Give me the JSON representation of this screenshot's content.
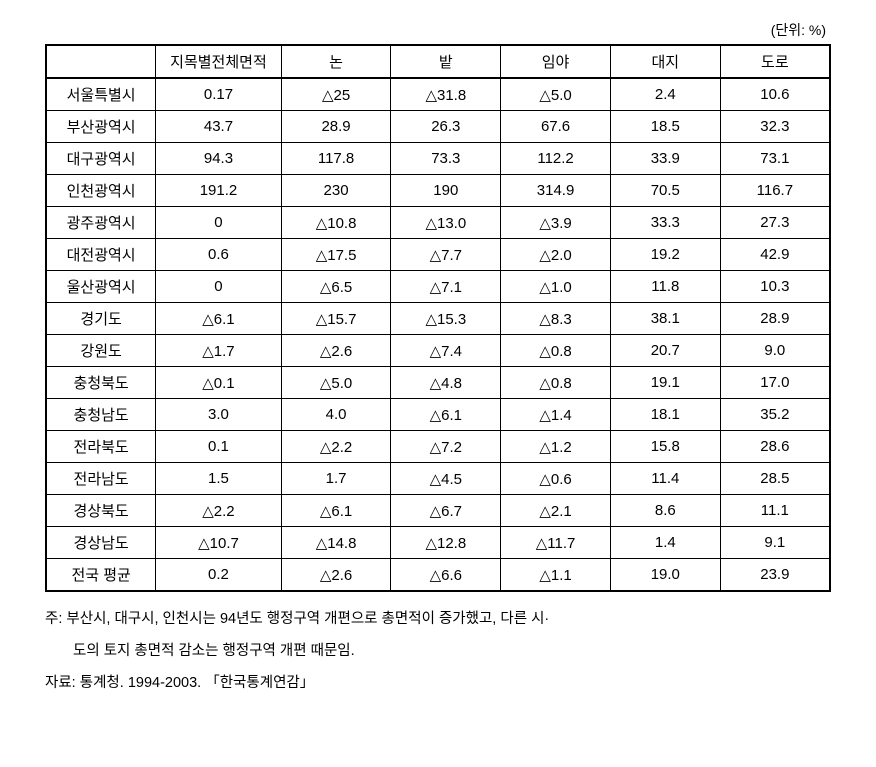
{
  "unit_label": "(단위: %)",
  "table": {
    "columns": [
      "",
      "지목별전체면적",
      "논",
      "밭",
      "임야",
      "대지",
      "도로"
    ],
    "rows": [
      {
        "label": "서울특별시",
        "values": [
          "0.17",
          "△25",
          "△31.8",
          "△5.0",
          "2.4",
          "10.6"
        ]
      },
      {
        "label": "부산광역시",
        "values": [
          "43.7",
          "28.9",
          "26.3",
          "67.6",
          "18.5",
          "32.3"
        ]
      },
      {
        "label": "대구광역시",
        "values": [
          "94.3",
          "117.8",
          "73.3",
          "112.2",
          "33.9",
          "73.1"
        ]
      },
      {
        "label": "인천광역시",
        "values": [
          "191.2",
          "230",
          "190",
          "314.9",
          "70.5",
          "116.7"
        ]
      },
      {
        "label": "광주광역시",
        "values": [
          "0",
          "△10.8",
          "△13.0",
          "△3.9",
          "33.3",
          "27.3"
        ]
      },
      {
        "label": "대전광역시",
        "values": [
          "0.6",
          "△17.5",
          "△7.7",
          "△2.0",
          "19.2",
          "42.9"
        ]
      },
      {
        "label": "울산광역시",
        "values": [
          "0",
          "△6.5",
          "△7.1",
          "△1.0",
          "11.8",
          "10.3"
        ]
      },
      {
        "label": "경기도",
        "values": [
          "△6.1",
          "△15.7",
          "△15.3",
          "△8.3",
          "38.1",
          "28.9"
        ]
      },
      {
        "label": "강원도",
        "values": [
          "△1.7",
          "△2.6",
          "△7.4",
          "△0.8",
          "20.7",
          "9.0"
        ]
      },
      {
        "label": "충청북도",
        "values": [
          "△0.1",
          "△5.0",
          "△4.8",
          "△0.8",
          "19.1",
          "17.0"
        ]
      },
      {
        "label": "충청남도",
        "values": [
          "3.0",
          "4.0",
          "△6.1",
          "△1.4",
          "18.1",
          "35.2"
        ]
      },
      {
        "label": "전라북도",
        "values": [
          "0.1",
          "△2.2",
          "△7.2",
          "△1.2",
          "15.8",
          "28.6"
        ]
      },
      {
        "label": "전라남도",
        "values": [
          "1.5",
          "1.7",
          "△4.5",
          "△0.6",
          "11.4",
          "28.5"
        ]
      },
      {
        "label": "경상북도",
        "values": [
          "△2.2",
          "△6.1",
          "△6.7",
          "△2.1",
          "8.6",
          "11.1"
        ]
      },
      {
        "label": "경상남도",
        "values": [
          "△10.7",
          "△14.8",
          "△12.8",
          "△11.7",
          "1.4",
          "9.1"
        ]
      },
      {
        "label": "전국 평균",
        "values": [
          "0.2",
          "△2.6",
          "△6.6",
          "△1.1",
          "19.0",
          "23.9"
        ]
      }
    ]
  },
  "notes": {
    "line1": "주: 부산시, 대구시, 인천시는 94년도 행정구역 개편으로 총면적이 증가했고, 다른 시·",
    "line2": "도의 토지 총면적 감소는 행정구역 개편 때문임.",
    "line3": "자료: 통계청. 1994-2003. 「한국통계연감」"
  },
  "styling": {
    "background_color": "#ffffff",
    "border_color": "#000000",
    "text_color": "#000000",
    "font_size_table": 15,
    "font_size_notes": 14.5,
    "col_widths": [
      "14%",
      "16%",
      "14%",
      "14%",
      "14%",
      "14%",
      "14%"
    ]
  }
}
